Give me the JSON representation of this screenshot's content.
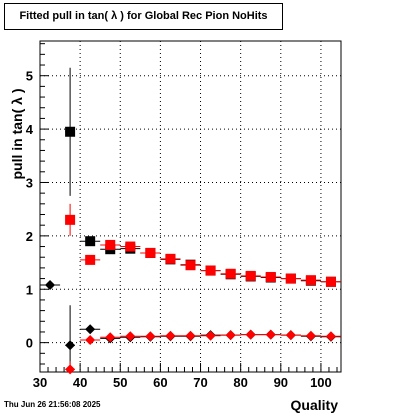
{
  "title": "Fitted pull in tan( λ ) for Global Rec Pion NoHits",
  "timestamp": "Thu Jun 26 21:56:08 2025",
  "chart_data": {
    "type": "scatter",
    "title": "Fitted pull in tan( λ ) for Global Rec Pion NoHits",
    "xlabel": "Quality",
    "ylabel": "pull in tan( λ )",
    "xlim": [
      30,
      105
    ],
    "ylim": [
      -0.55,
      5.65
    ],
    "xticks": [
      30,
      40,
      50,
      60,
      70,
      80,
      90,
      100
    ],
    "yticks": [
      0,
      1,
      2,
      3,
      4,
      5
    ],
    "grid": true,
    "series": [
      {
        "color": "#000000",
        "marker": "diamond",
        "points": [
          {
            "x": 32.5,
            "y": 1.08,
            "ex": 2.5,
            "ey": 0
          },
          {
            "x": 37.5,
            "y": -0.05,
            "ex": 1.2,
            "ey": 0.75
          },
          {
            "x": 42.5,
            "y": 0.25,
            "ex": 2.5,
            "ey": 0.08
          },
          {
            "x": 47.5,
            "y": 0.08,
            "ex": 2.5,
            "ey": 0.04
          },
          {
            "x": 52.5,
            "y": 0.1,
            "ex": 2.5,
            "ey": 0.03
          },
          {
            "x": 57.5,
            "y": 0.11,
            "ex": 2.5,
            "ey": 0.03
          },
          {
            "x": 62.5,
            "y": 0.12,
            "ex": 2.5,
            "ey": 0.03
          },
          {
            "x": 67.5,
            "y": 0.12,
            "ex": 2.5,
            "ey": 0.03
          },
          {
            "x": 72.5,
            "y": 0.14,
            "ex": 2.5,
            "ey": 0.03
          },
          {
            "x": 77.5,
            "y": 0.14,
            "ex": 2.5,
            "ey": 0.03
          },
          {
            "x": 82.5,
            "y": 0.15,
            "ex": 2.5,
            "ey": 0.03
          },
          {
            "x": 87.5,
            "y": 0.15,
            "ex": 2.5,
            "ey": 0.03
          },
          {
            "x": 92.5,
            "y": 0.14,
            "ex": 2.5,
            "ey": 0.03
          },
          {
            "x": 97.5,
            "y": 0.12,
            "ex": 2.5,
            "ey": 0.03
          },
          {
            "x": 102.5,
            "y": 0.11,
            "ex": 2.5,
            "ey": 0.03
          }
        ]
      },
      {
        "color": "#ff0000",
        "marker": "diamond",
        "points": [
          {
            "x": 37.5,
            "y": -0.5,
            "ex": 1.2,
            "ey": 0.15
          },
          {
            "x": 42.5,
            "y": 0.05,
            "ex": 2.5,
            "ey": 0.05
          },
          {
            "x": 47.5,
            "y": 0.1,
            "ex": 2.5,
            "ey": 0.03
          },
          {
            "x": 52.5,
            "y": 0.12,
            "ex": 2.5,
            "ey": 0.03
          },
          {
            "x": 57.5,
            "y": 0.12,
            "ex": 2.5,
            "ey": 0.03
          },
          {
            "x": 62.5,
            "y": 0.13,
            "ex": 2.5,
            "ey": 0.03
          },
          {
            "x": 67.5,
            "y": 0.13,
            "ex": 2.5,
            "ey": 0.03
          },
          {
            "x": 72.5,
            "y": 0.13,
            "ex": 2.5,
            "ey": 0.03
          },
          {
            "x": 77.5,
            "y": 0.14,
            "ex": 2.5,
            "ey": 0.03
          },
          {
            "x": 82.5,
            "y": 0.15,
            "ex": 2.5,
            "ey": 0.03
          },
          {
            "x": 87.5,
            "y": 0.15,
            "ex": 2.5,
            "ey": 0.03
          },
          {
            "x": 92.5,
            "y": 0.14,
            "ex": 2.5,
            "ey": 0.03
          },
          {
            "x": 97.5,
            "y": 0.13,
            "ex": 2.5,
            "ey": 0.03
          },
          {
            "x": 102.5,
            "y": 0.12,
            "ex": 2.5,
            "ey": 0.03
          }
        ]
      },
      {
        "color": "#000000",
        "marker": "square",
        "points": [
          {
            "x": 37.5,
            "y": 3.95,
            "ex": 1.2,
            "ey": 1.2
          },
          {
            "x": 42.5,
            "y": 1.9,
            "ex": 2.5,
            "ey": 0.08
          },
          {
            "x": 47.5,
            "y": 1.75,
            "ex": 2.5,
            "ey": 0.05
          },
          {
            "x": 52.5,
            "y": 1.76,
            "ex": 2.5,
            "ey": 0.04
          },
          {
            "x": 57.5,
            "y": 1.68,
            "ex": 2.5,
            "ey": 0.03
          },
          {
            "x": 62.5,
            "y": 1.56,
            "ex": 2.5,
            "ey": 0.03
          },
          {
            "x": 67.5,
            "y": 1.46,
            "ex": 2.5,
            "ey": 0.03
          },
          {
            "x": 72.5,
            "y": 1.35,
            "ex": 2.5,
            "ey": 0.03
          },
          {
            "x": 77.5,
            "y": 1.28,
            "ex": 2.5,
            "ey": 0.03
          },
          {
            "x": 82.5,
            "y": 1.24,
            "ex": 2.5,
            "ey": 0.03
          },
          {
            "x": 87.5,
            "y": 1.22,
            "ex": 2.5,
            "ey": 0.03
          },
          {
            "x": 92.5,
            "y": 1.2,
            "ex": 2.5,
            "ey": 0.03
          },
          {
            "x": 97.5,
            "y": 1.16,
            "ex": 2.5,
            "ey": 0.03
          },
          {
            "x": 102.5,
            "y": 1.14,
            "ex": 2.5,
            "ey": 0.03
          }
        ]
      },
      {
        "color": "#ff0000",
        "marker": "square",
        "points": [
          {
            "x": 37.5,
            "y": 2.3,
            "ex": 1.2,
            "ey": 0.3
          },
          {
            "x": 42.5,
            "y": 1.55,
            "ex": 2.5,
            "ey": 0.08
          },
          {
            "x": 47.5,
            "y": 1.83,
            "ex": 2.5,
            "ey": 0.05
          },
          {
            "x": 52.5,
            "y": 1.8,
            "ex": 2.5,
            "ey": 0.04
          },
          {
            "x": 57.5,
            "y": 1.68,
            "ex": 2.5,
            "ey": 0.03
          },
          {
            "x": 62.5,
            "y": 1.57,
            "ex": 2.5,
            "ey": 0.03
          },
          {
            "x": 67.5,
            "y": 1.45,
            "ex": 2.5,
            "ey": 0.03
          },
          {
            "x": 72.5,
            "y": 1.35,
            "ex": 2.5,
            "ey": 0.03
          },
          {
            "x": 77.5,
            "y": 1.29,
            "ex": 2.5,
            "ey": 0.03
          },
          {
            "x": 82.5,
            "y": 1.25,
            "ex": 2.5,
            "ey": 0.03
          },
          {
            "x": 87.5,
            "y": 1.23,
            "ex": 2.5,
            "ey": 0.03
          },
          {
            "x": 92.5,
            "y": 1.2,
            "ex": 2.5,
            "ey": 0.03
          },
          {
            "x": 97.5,
            "y": 1.17,
            "ex": 2.5,
            "ey": 0.03
          },
          {
            "x": 102.5,
            "y": 1.14,
            "ex": 2.5,
            "ey": 0.03
          }
        ]
      }
    ]
  }
}
